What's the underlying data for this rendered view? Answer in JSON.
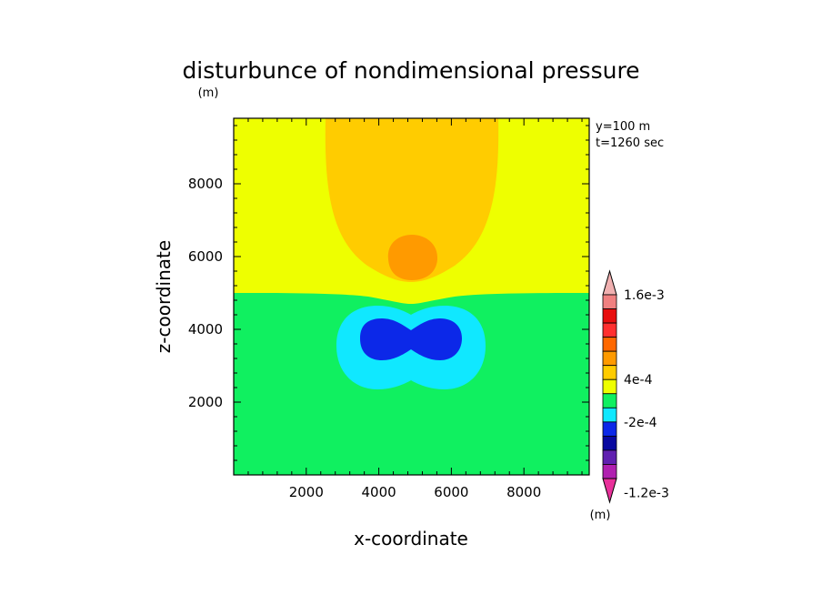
{
  "chart_data": {
    "type": "heatmap",
    "title": "disturbunce of nondimensional pressure",
    "xlabel": "x-coordinate",
    "ylabel": "z-coordinate",
    "y_unit_label": "(m)",
    "annotations": [
      "y=100 m",
      "t=1260 sec"
    ],
    "xlim": [
      0,
      9800
    ],
    "ylim": [
      0,
      9800
    ],
    "x_ticks": [
      2000,
      4000,
      6000,
      8000
    ],
    "y_ticks": [
      2000,
      4000,
      6000,
      8000
    ],
    "colorbar": {
      "unit_label": "(m)",
      "labels": [
        {
          "text": "1.6e-3",
          "level": 0.0016
        },
        {
          "text": "4e-4",
          "level": 0.0004
        },
        {
          "text": "-2e-4",
          "level": -0.0002
        },
        {
          "text": "-1.2e-3",
          "level": -0.0012
        }
      ],
      "levels": [
        -0.0016,
        -0.0014,
        -0.0012,
        -0.001,
        -0.0008,
        -0.0006,
        -0.0004,
        -0.0002,
        0,
        0.0002,
        0.0004,
        0.0006,
        0.0008,
        0.001,
        0.0012,
        0.0014,
        0.0016,
        0.0018
      ],
      "colors": [
        "#e8309a",
        "#b020b0",
        "#6020b0",
        "#0808a0",
        "#0c28e8",
        "#10e8ff",
        "#10f060",
        "#eeff00",
        "#ffcc00",
        "#ff9a00",
        "#ff6800",
        "#ff3030",
        "#e80e0e",
        "#f08080",
        "#f0b0b0"
      ],
      "extend": "both"
    },
    "regions": [
      {
        "name": "background-lower",
        "value": -0.0001,
        "color": "#10f060"
      },
      {
        "name": "background-upper",
        "value": 0.0001,
        "color": "#eeff00"
      },
      {
        "name": "upper-plume",
        "value": 0.0003,
        "color": "#ffcc00"
      },
      {
        "name": "upper-core",
        "value": 0.0005,
        "color": "#ff9a00"
      },
      {
        "name": "lower-ring",
        "value": -0.0003,
        "color": "#10e8ff"
      },
      {
        "name": "lower-core",
        "value": -0.0005,
        "color": "#0c28e8"
      }
    ]
  }
}
